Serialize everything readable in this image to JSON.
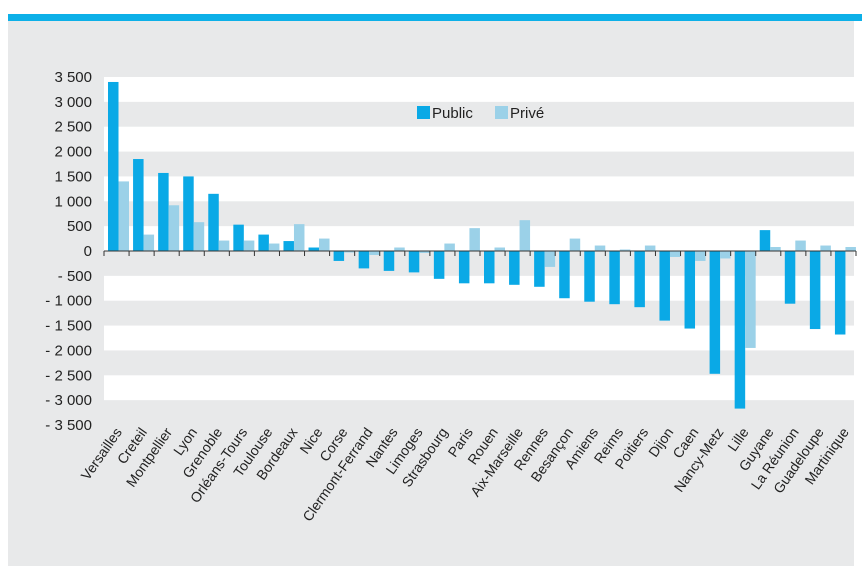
{
  "colors": {
    "background_panel": "#e8e9ea",
    "rule": "#0db0e8",
    "public": "#0aa9e6",
    "prive": "#9bd1e8"
  },
  "chart_data": {
    "type": "bar",
    "title": "",
    "xlabel": "",
    "ylabel": "",
    "ylim": [
      -3500,
      3500
    ],
    "yticks": [
      3500,
      3000,
      2500,
      2000,
      1500,
      1000,
      500,
      0,
      -500,
      -1000,
      -1500,
      -2000,
      -2500,
      -3000,
      -3500
    ],
    "ytick_labels": [
      "3 500",
      "3 000",
      "2 500",
      "2 000",
      "1 500",
      "1 000",
      "500",
      "0",
      "- 500",
      "- 1 000",
      "- 1 500",
      "- 2 000",
      "- 2 500",
      "- 3 000",
      "- 3 500"
    ],
    "legend_position": "top-center",
    "grid": "alternating horizontal bands",
    "categories": [
      "Versailles",
      "Creteil",
      "Montpellier",
      "Lyon",
      "Grenoble",
      "Orléans-Tours",
      "Toulouse",
      "Bordeaux",
      "Nice",
      "Corse",
      "Clermont-Ferrand",
      "Nantes",
      "Limoges",
      "Strasbourg",
      "Paris",
      "Rouen",
      "Aix-Marseille",
      "Rennes",
      "Besançon",
      "Amiens",
      "Reims",
      "Poitiers",
      "Dijon",
      "Caen",
      "Nancy-Metz",
      "Lille",
      "Guyane",
      "La Réunion",
      "Guadeloupe",
      "Martinique"
    ],
    "series": [
      {
        "name": "Public",
        "color": "#0aa9e6",
        "values": [
          3400,
          1850,
          1570,
          1500,
          1150,
          530,
          330,
          200,
          70,
          -200,
          -350,
          -400,
          -430,
          -560,
          -650,
          -650,
          -680,
          -720,
          -950,
          -1020,
          -1070,
          -1130,
          -1400,
          -1560,
          -2470,
          -3170,
          420,
          -1060,
          -1570,
          -1680
        ]
      },
      {
        "name": "Privé",
        "color": "#9bd1e8",
        "values": [
          1400,
          330,
          920,
          580,
          210,
          210,
          150,
          540,
          250,
          -30,
          -80,
          70,
          -40,
          150,
          460,
          70,
          620,
          -320,
          250,
          110,
          30,
          110,
          -120,
          -200,
          -150,
          -1950,
          80,
          210,
          110,
          80
        ]
      }
    ]
  }
}
